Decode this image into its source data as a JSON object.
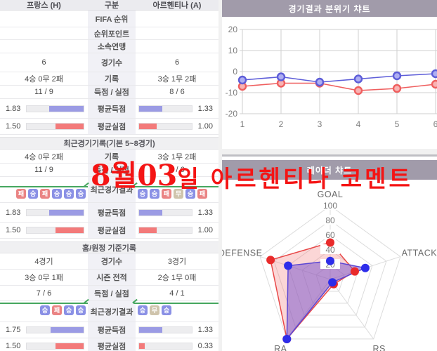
{
  "watermark": {
    "bold": "8월03",
    "light": "일 아르헨티나 코멘트",
    "color": "#f41414"
  },
  "table": {
    "header": {
      "home": "프랑스 (H)",
      "label": "구분",
      "away": "아르헨티나 (A)"
    },
    "badge_colors": {
      "승": "#8a90e5",
      "패": "#ea8484",
      "무": "#cfc4ac"
    },
    "sections": [
      {
        "title": null,
        "rows": [
          {
            "type": "text",
            "home": "",
            "label": "FIFA 순위",
            "away": ""
          },
          {
            "type": "text",
            "home": "",
            "label": "순위포인트",
            "away": ""
          },
          {
            "type": "text",
            "home": "",
            "label": "소속연맹",
            "away": ""
          },
          {
            "type": "text",
            "home": "6",
            "label": "경기수",
            "away": "6"
          },
          {
            "type": "text",
            "home": "4승 0무 2패",
            "label": "기록",
            "away": "3승 1무 2패"
          },
          {
            "type": "text",
            "home": "11 / 9",
            "label": "득점 / 실점",
            "away": "8 / 6"
          },
          {
            "type": "bar",
            "label": "평균득점",
            "color": "#9b9be4",
            "home": {
              "value": "1.83",
              "pct": 61
            },
            "away": {
              "value": "1.33",
              "pct": 44
            }
          },
          {
            "type": "bar",
            "label": "평균실점",
            "color": "#f37a7a",
            "home": {
              "value": "1.50",
              "pct": 50
            },
            "away": {
              "value": "1.00",
              "pct": 33
            }
          }
        ]
      },
      {
        "title": "최근경기기록(기본 5~8경기)",
        "rows": [
          {
            "type": "text",
            "home": "4승 0무 2패",
            "label": "기록",
            "away": "3승 1무 2패"
          },
          {
            "type": "text",
            "home": "11 / 9",
            "label": "득점 / 실점",
            "away": "8 / 6"
          },
          {
            "type": "badges",
            "label": "최근경기결과",
            "home": [
              "패",
              "승",
              "패",
              "승",
              "승",
              "승"
            ],
            "away": [
              "승",
              "승",
              "패",
              "무",
              "승",
              "패"
            ]
          },
          {
            "type": "bar",
            "label": "평균득점",
            "color": "#9b9be4",
            "home": {
              "value": "1.83",
              "pct": 61
            },
            "away": {
              "value": "1.33",
              "pct": 44
            }
          },
          {
            "type": "bar",
            "label": "평균실점",
            "color": "#f37a7a",
            "home": {
              "value": "1.50",
              "pct": 50
            },
            "away": {
              "value": "1.00",
              "pct": 33
            }
          }
        ]
      },
      {
        "title": "홈/원정 기준기록",
        "rows": [
          {
            "type": "text",
            "home": "4경기",
            "label": "경기수",
            "away": "3경기"
          },
          {
            "type": "text",
            "home": "3승 0무 1패",
            "label": "시즌 전적",
            "away": "2승 1무 0패"
          },
          {
            "type": "text",
            "home": "7 / 6",
            "label": "득점 / 실점",
            "away": "4 / 1"
          },
          {
            "type": "badges",
            "label": "최근경기결과",
            "home": [
              "승",
              "패",
              "승",
              "승"
            ],
            "away": [
              "승",
              "무",
              "승"
            ]
          },
          {
            "type": "bar",
            "label": "평균득점",
            "color": "#9b9be4",
            "home": {
              "value": "1.75",
              "pct": 58
            },
            "away": {
              "value": "1.33",
              "pct": 44
            }
          },
          {
            "type": "bar",
            "label": "평균실점",
            "color": "#f37a7a",
            "home": {
              "value": "1.50",
              "pct": 50
            },
            "away": {
              "value": "0.33",
              "pct": 11
            }
          }
        ]
      }
    ]
  },
  "chart_data": [
    {
      "type": "line",
      "title": "경기결과 분위기 챠트",
      "x": [
        1,
        2,
        3,
        4,
        5,
        6
      ],
      "yticks": [
        20,
        10,
        0,
        -10,
        -20
      ],
      "ylim": [
        -20,
        20
      ],
      "grid": true,
      "legend": "none",
      "series": [
        {
          "name": "home-mood",
          "color": "#ef5f5f",
          "marker_fill": "#f8b3b3",
          "values": [
            -7,
            -5.5,
            -5.5,
            -9,
            -8,
            -6
          ]
        },
        {
          "name": "away-mood",
          "color": "#5d5dd8",
          "marker_fill": "#aeaef2",
          "values": [
            -4,
            -2.5,
            -5,
            -3.5,
            -2,
            -1
          ]
        }
      ]
    },
    {
      "type": "radar",
      "title": "레이더 챠트",
      "axes": [
        "GOAL",
        "ATTACK",
        "RS",
        "RA",
        "DEFENSE"
      ],
      "rings": [
        20,
        40,
        60,
        80,
        100
      ],
      "max": 100,
      "series": [
        {
          "name": "home",
          "color": "#e84848",
          "fill": "rgba(243,120,120,0.30)",
          "dot": "#e92b2b",
          "values": [
            50,
            35,
            8,
            100,
            85
          ]
        },
        {
          "name": "away",
          "color": "#5b46d4",
          "fill": "rgba(122,86,205,0.52)",
          "dot": "#2d2dea",
          "values": [
            25,
            50,
            5,
            100,
            60
          ]
        }
      ]
    }
  ]
}
